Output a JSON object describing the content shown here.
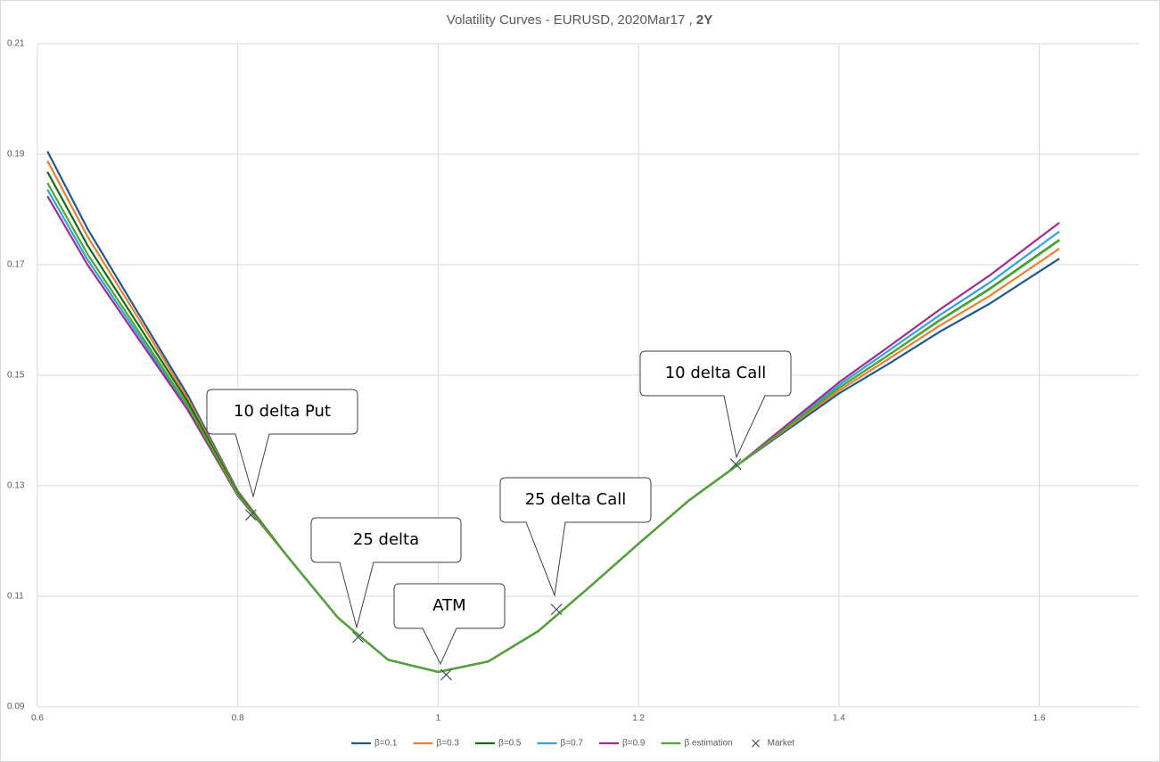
{
  "chart_data": {
    "type": "line",
    "title": "Volatility Curves - EURUSD, 2020Mar17 ,",
    "title_emphasis": "2Y",
    "x": [
      0.61,
      0.65,
      0.7,
      0.75,
      0.8,
      0.85,
      0.9,
      0.95,
      1,
      1.05,
      1.1,
      1.15,
      1.2,
      1.25,
      1.3,
      1.35,
      1.4,
      1.45,
      1.5,
      1.55,
      1.62
    ],
    "xlim": [
      0.6,
      1.7
    ],
    "xticks": [
      0.6,
      0.8,
      1,
      1.2,
      1.4,
      1.6
    ],
    "ylim": [
      0.09,
      0.21
    ],
    "yticks": [
      0.09,
      0.11,
      0.13,
      0.15,
      0.17,
      0.19,
      0.21
    ],
    "grid": true,
    "series": [
      {
        "name": "β=0.1",
        "color": "#1f5a8c",
        "values": [
          0.1905,
          0.1765,
          0.1614,
          0.1464,
          0.129,
          0.1171,
          0.1061,
          0.0985,
          0.0963,
          0.0982,
          0.1037,
          0.1115,
          0.1195,
          0.1273,
          0.1339,
          0.1403,
          0.1467,
          0.1521,
          0.1578,
          0.1629,
          0.1711
        ]
      },
      {
        "name": "β=0.3",
        "color": "#ed7d31",
        "values": [
          0.1888,
          0.1751,
          0.1605,
          0.1458,
          0.1288,
          0.1171,
          0.1061,
          0.0985,
          0.0963,
          0.0982,
          0.1037,
          0.1115,
          0.1195,
          0.1273,
          0.1339,
          0.1406,
          0.1472,
          0.153,
          0.1589,
          0.1643,
          0.1729
        ]
      },
      {
        "name": "β=0.5",
        "color": "#126b16",
        "values": [
          0.1868,
          0.1735,
          0.1593,
          0.1452,
          0.1286,
          0.1171,
          0.1061,
          0.0985,
          0.0963,
          0.0982,
          0.1037,
          0.1115,
          0.1195,
          0.1273,
          0.1339,
          0.1408,
          0.1477,
          0.1537,
          0.1599,
          0.1656,
          0.1745
        ]
      },
      {
        "name": "β=0.7",
        "color": "#2ea3df",
        "values": [
          0.1836,
          0.1709,
          0.1575,
          0.1441,
          0.1283,
          0.1171,
          0.1061,
          0.0985,
          0.0963,
          0.0982,
          0.1037,
          0.1115,
          0.1195,
          0.1273,
          0.1339,
          0.141,
          0.1482,
          0.1545,
          0.1608,
          0.1667,
          0.176
        ]
      },
      {
        "name": "β=0.9",
        "color": "#a02b93",
        "values": [
          0.1824,
          0.17,
          0.1568,
          0.1437,
          0.1282,
          0.1171,
          0.1061,
          0.0985,
          0.0963,
          0.0982,
          0.1037,
          0.1115,
          0.1195,
          0.1273,
          0.1339,
          0.1413,
          0.1487,
          0.1552,
          0.1618,
          0.168,
          0.1776
        ]
      },
      {
        "name": "β estimation",
        "color": "#4ea72e",
        "values": [
          0.1848,
          0.1719,
          0.1582,
          0.1445,
          0.1284,
          0.1171,
          0.1061,
          0.0985,
          0.0963,
          0.0982,
          0.1037,
          0.1115,
          0.1195,
          0.1273,
          0.1339,
          0.1408,
          0.1477,
          0.1537,
          0.1598,
          0.1655,
          0.1744
        ]
      },
      {
        "name": "Market",
        "color": "#3d4b5c",
        "marker": "x",
        "x": [
          0.813,
          0.92,
          1.008,
          1.118,
          1.297
        ],
        "values": [
          0.1247,
          0.1026,
          0.0958,
          0.1076,
          0.1339
        ]
      }
    ],
    "annotations": [
      {
        "text": "10 delta Put"
      },
      {
        "text": "25 delta"
      },
      {
        "text": "ATM"
      },
      {
        "text": "25 delta Call"
      },
      {
        "text": "10 delta Call"
      }
    ]
  }
}
